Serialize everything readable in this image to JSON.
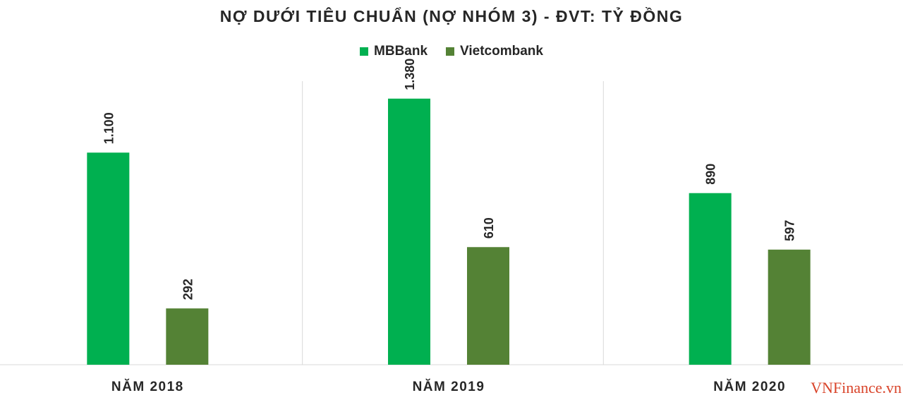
{
  "chart_data": {
    "type": "bar",
    "title": "NỢ DƯỚI TIÊU CHUẨN (NỢ NHÓM 3) - ĐVT: TỶ ĐỒNG",
    "categories": [
      "NĂM 2018",
      "NĂM 2019",
      "NĂM 2020"
    ],
    "series": [
      {
        "name": "MBBank",
        "values": [
          1100,
          1380,
          890
        ],
        "labels": [
          "1.100",
          "1.380",
          "890"
        ]
      },
      {
        "name": "Vietcombank",
        "values": [
          292,
          610,
          597
        ],
        "labels": [
          "292",
          "610",
          "597"
        ]
      }
    ],
    "ylim": [
      0,
      1500
    ],
    "grid": false,
    "legend": "top-center",
    "colors": [
      "#00b050",
      "#548235"
    ]
  },
  "watermark": "VNFinance.vn"
}
